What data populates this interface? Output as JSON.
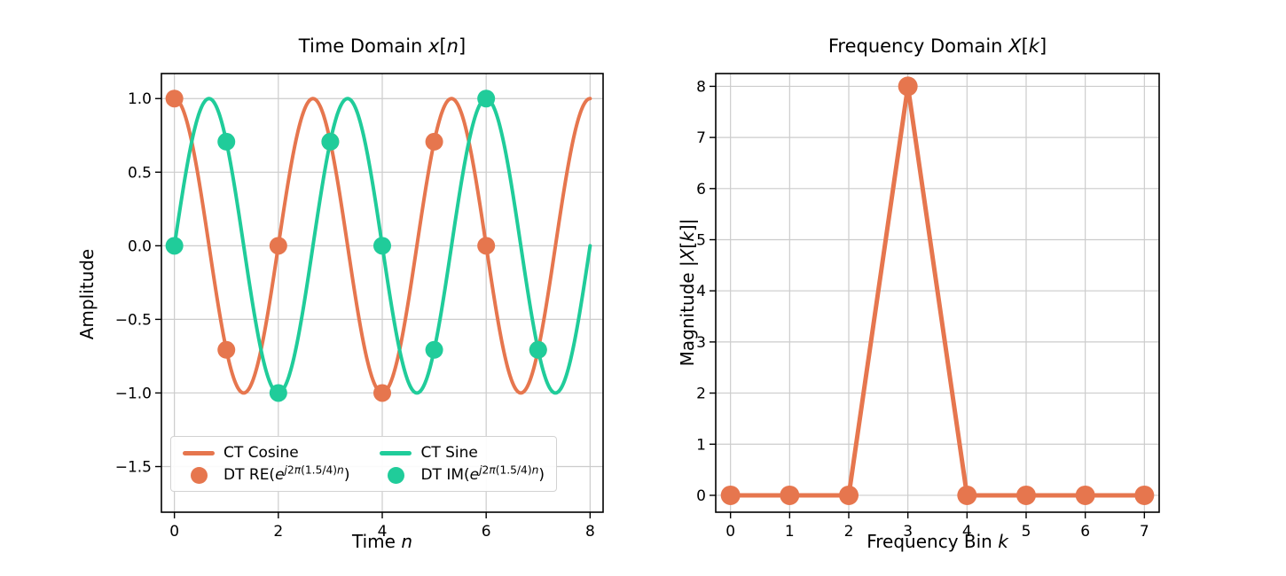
{
  "colors": {
    "orange": "#E6764E",
    "green": "#20CC9A",
    "grid": "#cccccc",
    "spine": "#000000",
    "text": "#000000"
  },
  "chart_data": [
    {
      "id": "time-domain",
      "type": "line",
      "title": "Time Domain x[n]",
      "title_rich": [
        {
          "t": "Time Domain "
        },
        {
          "t": "x",
          "i": 1
        },
        {
          "t": "["
        },
        {
          "t": "n",
          "i": 1
        },
        {
          "t": "]"
        }
      ],
      "xlabel": "Time n",
      "xlabel_rich": [
        {
          "t": "Time "
        },
        {
          "t": "n",
          "i": 1
        }
      ],
      "ylabel": "Amplitude",
      "ylabel_rich": [
        {
          "t": "Amplitude"
        }
      ],
      "xlim": [
        -0.25,
        8.25
      ],
      "ylim": [
        -1.81,
        1.17
      ],
      "xticks": {
        "values": [
          0,
          2,
          4,
          6,
          8
        ],
        "labels": [
          "0",
          "2",
          "4",
          "6",
          "8"
        ]
      },
      "yticks": {
        "values": [
          1.0,
          0.5,
          0.0,
          -0.5,
          -1.0,
          -1.5
        ],
        "labels": [
          "1.0",
          "0.5",
          "0.0",
          "−0.5",
          "−1.0",
          "−1.5"
        ]
      },
      "grid": true,
      "series": [
        {
          "name": "CT Cosine",
          "kind": "curve",
          "color_key": "orange",
          "fn": "cos",
          "freq_cycles_per_sample": 0.375,
          "formula": "cos(2π(1.5/4)t)",
          "domain": [
            0,
            8
          ],
          "linewidth": 4
        },
        {
          "name": "CT Sine",
          "kind": "curve",
          "color_key": "green",
          "fn": "sin",
          "freq_cycles_per_sample": 0.375,
          "formula": "sin(2π(1.5/4)t)",
          "domain": [
            0,
            8
          ],
          "linewidth": 4
        },
        {
          "name": "DT RE(e^(j2π(1.5/4)n))",
          "kind": "markers",
          "color_key": "orange",
          "radius": 10,
          "x": [
            0,
            1,
            2,
            3,
            4,
            5,
            6,
            7
          ],
          "y": [
            1,
            -0.7071,
            0,
            0.7071,
            -1,
            0.7071,
            0,
            -0.7071
          ]
        },
        {
          "name": "DT IM(e^(j2π(1.5/4)n))",
          "kind": "markers",
          "color_key": "green",
          "radius": 10,
          "x": [
            0,
            1,
            2,
            3,
            4,
            5,
            6,
            7
          ],
          "y": [
            0,
            0.7071,
            -1,
            0.7071,
            0,
            -0.7071,
            1,
            -0.7071
          ]
        }
      ],
      "legend": {
        "position": "lower left",
        "entries": [
          {
            "id": "ct-cosine",
            "swatch": "line",
            "color_key": "orange",
            "label": "CT Cosine",
            "label_rich": [
              {
                "t": "CT Cosine"
              }
            ]
          },
          {
            "id": "ct-sine",
            "swatch": "line",
            "color_key": "green",
            "label": "CT Sine",
            "label_rich": [
              {
                "t": "CT Sine"
              }
            ]
          },
          {
            "id": "dt-re",
            "swatch": "dot",
            "color_key": "orange",
            "label": "DT RE(e^(j2π(1.5/4)n))",
            "label_rich": [
              {
                "t": "DT RE("
              },
              {
                "t": "e",
                "i": 1
              },
              {
                "t": "j",
                "i": 1,
                "s": 1
              },
              {
                "t": "2",
                "s": 1
              },
              {
                "t": "π",
                "i": 1,
                "s": 1
              },
              {
                "t": "(1.5/4)",
                "s": 1
              },
              {
                "t": "n",
                "i": 1,
                "s": 1
              },
              {
                "t": ")"
              }
            ]
          },
          {
            "id": "dt-im",
            "swatch": "dot",
            "color_key": "green",
            "label": "DT IM(e^(j2π(1.5/4)n))",
            "label_rich": [
              {
                "t": "DT IM("
              },
              {
                "t": "e",
                "i": 1
              },
              {
                "t": "j",
                "i": 1,
                "s": 1
              },
              {
                "t": "2",
                "s": 1
              },
              {
                "t": "π",
                "i": 1,
                "s": 1
              },
              {
                "t": "(1.5/4)",
                "s": 1
              },
              {
                "t": "n",
                "i": 1,
                "s": 1
              },
              {
                "t": ")"
              }
            ]
          }
        ]
      }
    },
    {
      "id": "frequency-domain",
      "type": "line",
      "title": "Frequency Domain X[k]",
      "title_rich": [
        {
          "t": "Frequency Domain "
        },
        {
          "t": "X",
          "i": 1
        },
        {
          "t": "["
        },
        {
          "t": "k",
          "i": 1
        },
        {
          "t": "]"
        }
      ],
      "xlabel": "Frequency Bin k",
      "xlabel_rich": [
        {
          "t": "Frequency Bin "
        },
        {
          "t": "k",
          "i": 1
        }
      ],
      "ylabel": "Magnitude |X[k]|",
      "ylabel_rich": [
        {
          "t": "Magnitude |"
        },
        {
          "t": "X",
          "i": 1
        },
        {
          "t": "["
        },
        {
          "t": "k",
          "i": 1
        },
        {
          "t": "]|"
        }
      ],
      "xlim": [
        -0.25,
        7.25
      ],
      "ylim": [
        -0.33,
        8.25
      ],
      "xticks": {
        "values": [
          0,
          1,
          2,
          3,
          4,
          5,
          6,
          7
        ],
        "labels": [
          "0",
          "1",
          "2",
          "3",
          "4",
          "5",
          "6",
          "7"
        ]
      },
      "yticks": {
        "values": [
          0,
          1,
          2,
          3,
          4,
          5,
          6,
          7,
          8
        ],
        "labels": [
          "0",
          "1",
          "2",
          "3",
          "4",
          "5",
          "6",
          "7",
          "8"
        ]
      },
      "grid": true,
      "series": [
        {
          "name": "|X[k]|",
          "kind": "line-markers",
          "color_key": "orange",
          "linewidth": 5,
          "radius": 11,
          "x": [
            0,
            1,
            2,
            3,
            4,
            5,
            6,
            7
          ],
          "y": [
            0,
            0,
            0,
            8,
            0,
            0,
            0,
            0
          ]
        }
      ]
    }
  ]
}
